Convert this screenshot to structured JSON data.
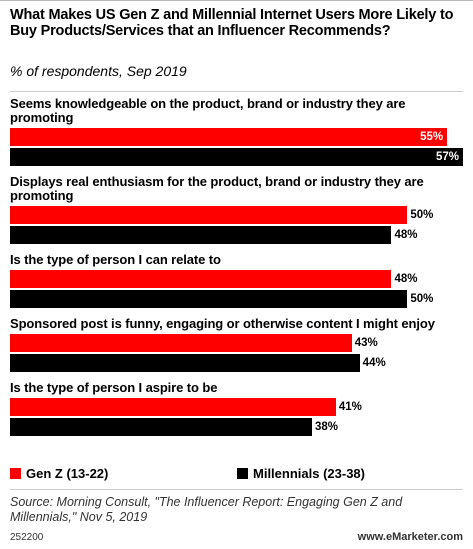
{
  "chart_data": {
    "type": "bar",
    "orientation": "horizontal",
    "title": "What Makes US Gen Z and Millennial Internet Users More Likely to Buy Products/Services that an Influencer Recommends?",
    "subtitle": "% of respondents, Sep 2019",
    "categories": [
      "Seems knowledgeable on the product, brand or industry they are promoting",
      "Displays real enthusiasm for the product, brand or industry they are promoting",
      "Is the type of person I can relate to",
      "Sponsored post is funny, engaging or otherwise content I might enjoy",
      "Is the type of person I aspire to be"
    ],
    "series": [
      {
        "name": "Gen Z (13-22)",
        "color": "#ff0000",
        "values": [
          55,
          50,
          48,
          43,
          41
        ],
        "value_labels": [
          "55%",
          "50%",
          "48%",
          "43%",
          "41%"
        ]
      },
      {
        "name": "Millennials (23-38)",
        "color": "#000000",
        "values": [
          57,
          48,
          50,
          44,
          38
        ],
        "value_labels": [
          "57%",
          "48%",
          "50%",
          "44%",
          "38%"
        ]
      }
    ],
    "source": "Source: Morning Consult, \"The Influencer Report: Engaging Gen Z and Millennials,\" Nov 5, 2019",
    "chart_id": "252200",
    "website": "www.eMarketer.com"
  }
}
